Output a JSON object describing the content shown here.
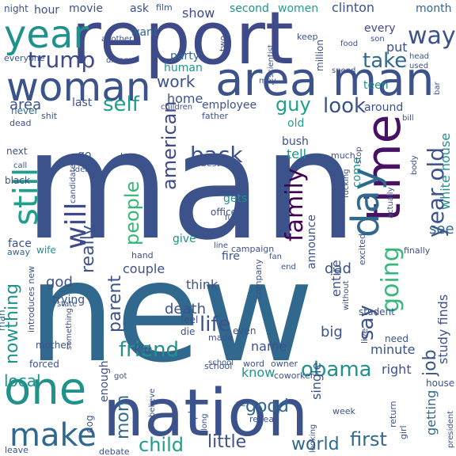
{
  "words": [
    {
      "text": "man",
      "color": "#3b528b"
    },
    {
      "text": "new",
      "color": "#31688e"
    },
    {
      "text": "report",
      "color": "#3e4a89"
    },
    {
      "text": "nation",
      "color": "#3b528b"
    },
    {
      "text": "area man",
      "color": "#3b528b"
    },
    {
      "text": "woman",
      "color": "#3b528b"
    },
    {
      "text": "time",
      "color": "#471164"
    },
    {
      "text": "one",
      "color": "#21918c"
    },
    {
      "text": "year",
      "color": "#21918c"
    },
    {
      "text": "make",
      "color": "#31688e"
    },
    {
      "text": "still",
      "color": "#1f9e89"
    },
    {
      "text": "day",
      "color": "#31688e"
    },
    {
      "text": "year old",
      "color": "#3b528b"
    },
    {
      "text": "family",
      "color": "#440154"
    },
    {
      "text": "going",
      "color": "#35b779"
    },
    {
      "text": "will",
      "color": "#3e4a89"
    },
    {
      "text": "trump",
      "color": "#3e4a89"
    },
    {
      "text": "take",
      "color": "#31688e"
    },
    {
      "text": "way",
      "color": "#3b528b"
    },
    {
      "text": "area",
      "color": "#3b528b"
    },
    {
      "text": "self",
      "color": "#1f9e89"
    },
    {
      "text": "work",
      "color": "#3b528b"
    },
    {
      "text": "american",
      "color": "#3e4a89"
    },
    {
      "text": "back",
      "color": "#3b528b"
    },
    {
      "text": "people",
      "color": "#35b779"
    },
    {
      "text": "guy",
      "color": "#1f9e89"
    },
    {
      "text": "look",
      "color": "#3b528b"
    },
    {
      "text": "say",
      "color": "#3b528b"
    },
    {
      "text": "friend",
      "color": "#21918c"
    },
    {
      "text": "obama",
      "color": "#21918c"
    },
    {
      "text": "life",
      "color": "#3b528b"
    },
    {
      "text": "child",
      "color": "#1f9e89"
    },
    {
      "text": "little",
      "color": "#3b528b"
    },
    {
      "text": "world",
      "color": "#31688e"
    },
    {
      "text": "first",
      "color": "#31688e"
    },
    {
      "text": "local",
      "color": "#21918c"
    },
    {
      "text": "nowthing",
      "color": "#21918c"
    },
    {
      "text": "parent",
      "color": "#3b528b"
    },
    {
      "text": "really",
      "color": "#3b528b"
    },
    {
      "text": "mom",
      "color": "#31688e"
    },
    {
      "text": "good",
      "color": "#31688e"
    },
    {
      "text": "job",
      "color": "#3b528b"
    },
    {
      "text": "party",
      "color": "#31688e"
    },
    {
      "text": "home",
      "color": "#3b528b"
    },
    {
      "text": "employee",
      "color": "#3b528b"
    },
    {
      "text": "human",
      "color": "#21918c"
    },
    {
      "text": "want",
      "color": "#31688e"
    },
    {
      "text": "show",
      "color": "#3e4a89"
    },
    {
      "text": "second",
      "color": "#21918c"
    },
    {
      "text": "women",
      "color": "#1f9e89"
    },
    {
      "text": "clinton",
      "color": "#3b528b"
    },
    {
      "text": "month",
      "color": "#31688e"
    },
    {
      "text": "every",
      "color": "#3e4a89"
    },
    {
      "text": "put",
      "color": "#3b528b"
    },
    {
      "text": "teen",
      "color": "#21918c"
    },
    {
      "text": "around",
      "color": "#3b528b"
    },
    {
      "text": "last",
      "color": "#3b528b"
    },
    {
      "text": "old",
      "color": "#1f9e89"
    },
    {
      "text": "bush",
      "color": "#3b528b"
    },
    {
      "text": "tell",
      "color": "#21918c"
    },
    {
      "text": "white house",
      "color": "#21918c"
    },
    {
      "text": "announce",
      "color": "#3b528b"
    },
    {
      "text": "see",
      "color": "#31688e"
    },
    {
      "text": "come",
      "color": "#21918c"
    },
    {
      "text": "dad",
      "color": "#3b528b"
    },
    {
      "text": "couple",
      "color": "#3b528b"
    },
    {
      "text": "think",
      "color": "#3b528b"
    },
    {
      "text": "death",
      "color": "#3b528b"
    },
    {
      "text": "god",
      "color": "#3b528b"
    },
    {
      "text": "entire",
      "color": "#3b528b"
    },
    {
      "text": "study finds",
      "color": "#3b528b"
    },
    {
      "text": "minute",
      "color": "#3b528b"
    },
    {
      "text": "big",
      "color": "#3b528b"
    },
    {
      "text": "name",
      "color": "#3b528b"
    },
    {
      "text": "know",
      "color": "#21918c"
    },
    {
      "text": "right",
      "color": "#3b528b"
    },
    {
      "text": "kid",
      "color": "#3b528b"
    },
    {
      "text": "enough",
      "color": "#3b528b"
    },
    {
      "text": "single",
      "color": "#3b528b"
    },
    {
      "text": "getting",
      "color": "#31688e"
    },
    {
      "text": "hour",
      "color": "#3b528b"
    },
    {
      "text": "movie",
      "color": "#3b528b"
    },
    {
      "text": "ask",
      "color": "#3b528b"
    },
    {
      "text": "go",
      "color": "#3b528b"
    },
    {
      "text": "next",
      "color": "#3b528b"
    },
    {
      "text": "gets",
      "color": "#21918c"
    },
    {
      "text": "give",
      "color": "#21918c"
    },
    {
      "text": "fire",
      "color": "#3b528b"
    },
    {
      "text": "office",
      "color": "#3b528b"
    },
    {
      "text": "campaign",
      "color": "#3b528b"
    },
    {
      "text": "school",
      "color": "#3b528b"
    },
    {
      "text": "plan",
      "color": "#3b528b"
    },
    {
      "text": "never",
      "color": "#31688e"
    },
    {
      "text": "dead",
      "color": "#3b528b"
    },
    {
      "text": "black",
      "color": "#3b528b"
    },
    {
      "text": "face",
      "color": "#3b528b"
    },
    {
      "text": "wife",
      "color": "#21918c"
    },
    {
      "text": "away",
      "color": "#31688e"
    },
    {
      "text": "trying",
      "color": "#3b528b"
    },
    {
      "text": "mother",
      "color": "#3b528b"
    },
    {
      "text": "forced",
      "color": "#3b528b"
    },
    {
      "text": "man",
      "color": "#31688e"
    },
    {
      "text": "dog",
      "color": "#3b528b"
    },
    {
      "text": "leave",
      "color": "#3b528b"
    },
    {
      "text": "debate",
      "color": "#3b528b"
    },
    {
      "text": "reveal",
      "color": "#3b528b"
    },
    {
      "text": "week",
      "color": "#3b528b"
    },
    {
      "text": "house",
      "color": "#3b528b"
    },
    {
      "text": "girl",
      "color": "#3b528b"
    },
    {
      "text": "return",
      "color": "#3b528b"
    },
    {
      "text": "president",
      "color": "#3b528b"
    },
    {
      "text": "student",
      "color": "#3b528b"
    },
    {
      "text": "need",
      "color": "#3b528b"
    },
    {
      "text": "live",
      "color": "#3b528b"
    },
    {
      "text": "feel",
      "color": "#3b528b"
    },
    {
      "text": "die",
      "color": "#3b528b"
    },
    {
      "text": "made",
      "color": "#3b528b"
    },
    {
      "text": "even",
      "color": "#3b528b"
    },
    {
      "text": "word",
      "color": "#3b528b"
    },
    {
      "text": "owner",
      "color": "#3b528b"
    },
    {
      "text": "coworker",
      "color": "#3b528b"
    },
    {
      "text": "night",
      "color": "#3b528b"
    },
    {
      "text": "everyone",
      "color": "#3b528b"
    },
    {
      "text": "another",
      "color": "#3b528b"
    },
    {
      "text": "dream",
      "color": "#3b528b"
    },
    {
      "text": "film",
      "color": "#3b528b"
    },
    {
      "text": "two",
      "color": "#3b528b"
    },
    {
      "text": "keep",
      "color": "#3b528b"
    },
    {
      "text": "scientist",
      "color": "#3b528b"
    },
    {
      "text": "million",
      "color": "#3b528b"
    },
    {
      "text": "son",
      "color": "#3b528b"
    },
    {
      "text": "food",
      "color": "#3b528b"
    },
    {
      "text": "spend",
      "color": "#3b528b"
    },
    {
      "text": "head",
      "color": "#3b528b"
    },
    {
      "text": "used",
      "color": "#3b528b"
    },
    {
      "text": "may",
      "color": "#3b528b"
    },
    {
      "text": "father",
      "color": "#3b528b"
    },
    {
      "text": "children",
      "color": "#3b528b"
    },
    {
      "text": "shit",
      "color": "#3b528b"
    },
    {
      "text": "love",
      "color": "#3b528b"
    },
    {
      "text": "idea",
      "color": "#3b528b"
    },
    {
      "text": "call",
      "color": "#3b528b"
    },
    {
      "text": "candidate",
      "color": "#3b528b"
    },
    {
      "text": "best",
      "color": "#3b528b"
    },
    {
      "text": "much",
      "color": "#3b528b"
    },
    {
      "text": "fucking",
      "color": "#3b528b"
    },
    {
      "text": "stop",
      "color": "#3b528b"
    },
    {
      "text": "actually",
      "color": "#3b528b"
    },
    {
      "text": "body",
      "color": "#3b528b"
    },
    {
      "text": "bill",
      "color": "#3b528b"
    },
    {
      "text": "bar",
      "color": "#3b528b"
    },
    {
      "text": "without",
      "color": "#3b528b"
    },
    {
      "text": "finally",
      "color": "#3b528b"
    },
    {
      "text": "fan",
      "color": "#3b528b"
    },
    {
      "text": "line",
      "color": "#3b528b"
    },
    {
      "text": "full",
      "color": "#3b528b"
    },
    {
      "text": "hand",
      "color": "#3b528b"
    },
    {
      "text": "end",
      "color": "#3b528b"
    },
    {
      "text": "company",
      "color": "#3b528b"
    },
    {
      "text": "excited",
      "color": "#3b528b"
    },
    {
      "text": "introduces new",
      "color": "#3b528b"
    },
    {
      "text": "state",
      "color": "#3b528b"
    },
    {
      "text": "something",
      "color": "#3b528b"
    },
    {
      "text": "got",
      "color": "#3b528b"
    },
    {
      "text": "believe",
      "color": "#3b528b"
    },
    {
      "text": "long",
      "color": "#3b528b"
    },
    {
      "text": "se",
      "color": "#3b528b"
    },
    {
      "text": "looking",
      "color": "#3b528b"
    },
    {
      "text": "school",
      "color": "#3b528b"
    }
  ]
}
